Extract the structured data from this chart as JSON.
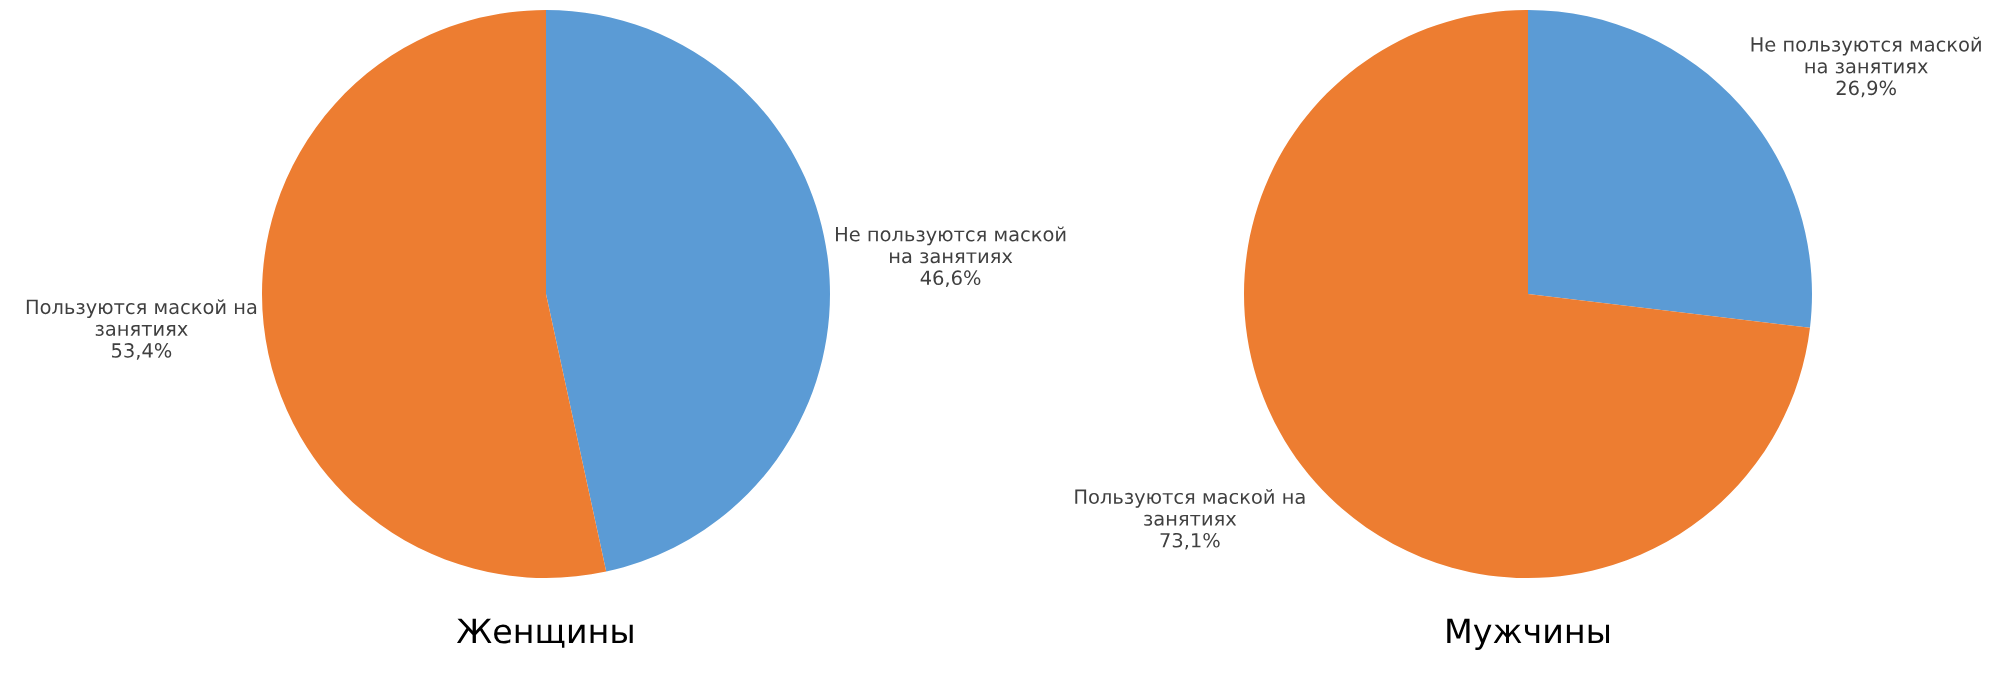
{
  "chart_data": [
    {
      "type": "pie",
      "title": "Женщины",
      "categories": [
        "Не пользуются маской на занятиях",
        "Пользуются маской на занятиях"
      ],
      "values": [
        46.6,
        53.4
      ],
      "colors": [
        "#5b9bd5",
        "#ed7d31"
      ],
      "value_labels": [
        "46,6%",
        "53,4%"
      ]
    },
    {
      "type": "pie",
      "title": "Мужчины",
      "categories": [
        "Не пользуются маской на занятиях",
        "Пользуются маской на занятиях"
      ],
      "values": [
        26.9,
        73.1
      ],
      "colors": [
        "#5b9bd5",
        "#ed7d31"
      ],
      "value_labels": [
        "26,9%",
        "73,1%"
      ]
    }
  ]
}
